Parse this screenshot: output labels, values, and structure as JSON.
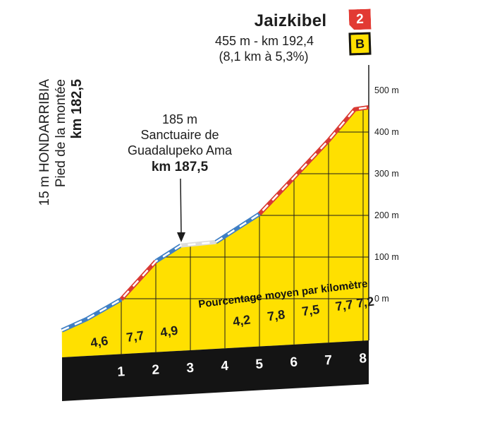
{
  "header": {
    "title": "Jaizkibel",
    "summit_line": "455 m - km 192,4",
    "stats_line": "(8,1 km à 5,3%)",
    "category_badge": "2",
    "bonus_badge": "B"
  },
  "start_label": {
    "line1": "15 m HONDARRIBIA",
    "line2": "Pied de la montée",
    "line3": "km 182,5"
  },
  "mid_label": {
    "line1": "185 m",
    "line2": "Sanctuaire de",
    "line3": "Guadalupeko Ama",
    "line4": "km 187,5"
  },
  "chart_data": {
    "type": "area",
    "title": "Jaizkibel climb profile",
    "banner": "Pourcentage moyen par kilomètre",
    "x_unit": "km",
    "y_unit": "m",
    "xlim_km": [
      0,
      8.1
    ],
    "ylim": [
      0,
      500
    ],
    "summit_elevation_m": 455,
    "summit_km": "192,4",
    "start_elevation_m": 15,
    "start_km": "182,5",
    "length_km": 8.1,
    "avg_gradient_pct": 5.3,
    "y_axis_ticks": [
      {
        "elev": 500,
        "label": "500 m"
      },
      {
        "elev": 400,
        "label": "400 m"
      },
      {
        "elev": 300,
        "label": "300 m"
      },
      {
        "elev": 200,
        "label": "200 m"
      },
      {
        "elev": 100,
        "label": "100 m"
      },
      {
        "elev": 0,
        "label": "0 m"
      }
    ],
    "km_ticks": [
      {
        "km": 1,
        "label": "1"
      },
      {
        "km": 2,
        "label": "2"
      },
      {
        "km": 3,
        "label": "3"
      },
      {
        "km": 4,
        "label": "4"
      },
      {
        "km": 5,
        "label": "5"
      },
      {
        "km": 6,
        "label": "6"
      },
      {
        "km": 7,
        "label": "7"
      },
      {
        "km": 8,
        "label": "8"
      }
    ],
    "gradients": [
      {
        "label": "4,6",
        "value_pct": 4.6,
        "km_mid": 0.38,
        "steepness": "moderate"
      },
      {
        "label": "7,7",
        "value_pct": 7.7,
        "km_mid": 1.42,
        "steepness": "steep"
      },
      {
        "label": "4,9",
        "value_pct": 4.9,
        "km_mid": 2.4,
        "steepness": "moderate"
      },
      {
        "label": "4,2",
        "value_pct": 4.2,
        "km_mid": 4.5,
        "steepness": "moderate"
      },
      {
        "label": "7,8",
        "value_pct": 7.8,
        "km_mid": 5.5,
        "steepness": "steep"
      },
      {
        "label": "7,5",
        "value_pct": 7.5,
        "km_mid": 6.5,
        "steepness": "steep"
      },
      {
        "label": "7,7",
        "value_pct": 7.7,
        "km_mid": 7.47,
        "steepness": "steep"
      },
      {
        "label": "7,2",
        "value_pct": 7.2,
        "km_mid": 8.08,
        "steepness": "steep"
      }
    ],
    "profile": {
      "points": [
        {
          "km": -0.72,
          "elev": 3
        },
        {
          "km": 0,
          "elev": 26
        },
        {
          "km": 1,
          "elev": 66
        },
        {
          "km": 2,
          "elev": 143
        },
        {
          "km": 2.72,
          "elev": 175
        },
        {
          "km": 3.74,
          "elev": 182
        },
        {
          "km": 5,
          "elev": 239
        },
        {
          "km": 6,
          "elev": 313
        },
        {
          "km": 7,
          "elev": 388
        },
        {
          "km": 7.76,
          "elev": 451
        },
        {
          "km": 8.16,
          "elev": 455
        }
      ],
      "segments": [
        {
          "from_km": -0.72,
          "to_km": 1,
          "style": "moderate"
        },
        {
          "from_km": 1,
          "to_km": 2,
          "style": "steep"
        },
        {
          "from_km": 2,
          "to_km": 2.72,
          "style": "moderate"
        },
        {
          "from_km": 2.72,
          "to_km": 3.74,
          "style": "flat"
        },
        {
          "from_km": 3.74,
          "to_km": 5,
          "style": "moderate"
        },
        {
          "from_km": 5,
          "to_km": 8.16,
          "style": "steep"
        }
      ]
    },
    "colors": {
      "profile_fill": "#ffe000",
      "steep": "#d93a34",
      "moderate": "#3f7fc4",
      "flat": "#dcdcdc",
      "dash": "#ffffff",
      "base_band": "#141414",
      "text": "#1d1d1d",
      "badge_category": "#e23a33",
      "badge_bonus": "#ffe000"
    }
  }
}
